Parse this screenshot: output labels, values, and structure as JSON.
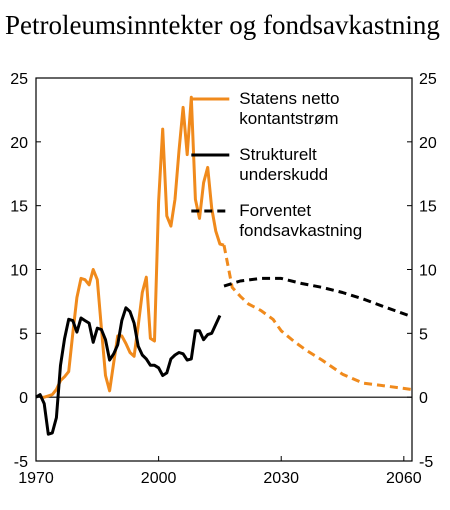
{
  "chart_data": {
    "type": "line",
    "title": "Petroleumsinntekter og fondsavkastning",
    "xlim": [
      1970,
      2062
    ],
    "ylim": [
      -5,
      25
    ],
    "x_ticks": [
      1970,
      2000,
      2030,
      2060
    ],
    "y_ticks": [
      -5,
      0,
      5,
      10,
      15,
      20,
      25
    ],
    "grid": false,
    "legend_position": "top-right",
    "series": [
      {
        "name": "Statens netto kontantstrøm",
        "legend_lines": [
          "Statens netto",
          "kontantstrøm"
        ],
        "color": "#f08a1c",
        "style": "solid",
        "points": [
          [
            1971,
            0
          ],
          [
            1972,
            0
          ],
          [
            1973,
            0.1
          ],
          [
            1974,
            0.2
          ],
          [
            1975,
            0.6
          ],
          [
            1976,
            1.3
          ],
          [
            1977,
            1.6
          ],
          [
            1978,
            2.0
          ],
          [
            1979,
            5.0
          ],
          [
            1980,
            7.8
          ],
          [
            1981,
            9.3
          ],
          [
            1982,
            9.2
          ],
          [
            1983,
            8.8
          ],
          [
            1984,
            10.0
          ],
          [
            1985,
            9.2
          ],
          [
            1986,
            5.4
          ],
          [
            1987,
            1.7
          ],
          [
            1988,
            0.5
          ],
          [
            1989,
            2.7
          ],
          [
            1990,
            4.8
          ],
          [
            1991,
            4.8
          ],
          [
            1992,
            4.2
          ],
          [
            1993,
            3.5
          ],
          [
            1994,
            3.2
          ],
          [
            1995,
            5.6
          ],
          [
            1996,
            8.2
          ],
          [
            1997,
            9.4
          ],
          [
            1998,
            4.6
          ],
          [
            1999,
            4.4
          ],
          [
            2000,
            15.3
          ],
          [
            2001,
            21.0
          ],
          [
            2002,
            14.2
          ],
          [
            2003,
            13.4
          ],
          [
            2004,
            15.5
          ],
          [
            2005,
            19.3
          ],
          [
            2006,
            22.7
          ],
          [
            2007,
            19.0
          ],
          [
            2008,
            23.5
          ],
          [
            2009,
            15.5
          ],
          [
            2010,
            14.0
          ],
          [
            2011,
            16.8
          ],
          [
            2012,
            18.0
          ],
          [
            2013,
            14.8
          ],
          [
            2014,
            13.0
          ],
          [
            2015,
            12.0
          ],
          [
            2016,
            11.9
          ]
        ]
      },
      {
        "name": "Statens netto kontantstrøm (projeksjon)",
        "color": "#f08a1c",
        "style": "dashed",
        "points": [
          [
            2016,
            11.9
          ],
          [
            2018,
            8.6
          ],
          [
            2020,
            7.9
          ],
          [
            2022,
            7.3
          ],
          [
            2025,
            6.8
          ],
          [
            2028,
            6.1
          ],
          [
            2030,
            5.2
          ],
          [
            2033,
            4.4
          ],
          [
            2036,
            3.7
          ],
          [
            2040,
            2.9
          ],
          [
            2045,
            1.8
          ],
          [
            2050,
            1.1
          ],
          [
            2055,
            0.9
          ],
          [
            2062,
            0.6
          ]
        ]
      },
      {
        "name": "Strukturelt underskudd",
        "legend_lines": [
          "Strukturelt",
          "underskudd"
        ],
        "color": "#000000",
        "style": "solid",
        "points": [
          [
            1970,
            0
          ],
          [
            1971,
            0.2
          ],
          [
            1972,
            -0.5
          ],
          [
            1973,
            -2.9
          ],
          [
            1974,
            -2.8
          ],
          [
            1975,
            -1.6
          ],
          [
            1976,
            2.5
          ],
          [
            1977,
            4.6
          ],
          [
            1978,
            6.1
          ],
          [
            1979,
            6.0
          ],
          [
            1980,
            5.1
          ],
          [
            1981,
            6.2
          ],
          [
            1982,
            6.0
          ],
          [
            1983,
            5.8
          ],
          [
            1984,
            4.3
          ],
          [
            1985,
            5.4
          ],
          [
            1986,
            5.3
          ],
          [
            1987,
            4.5
          ],
          [
            1988,
            2.9
          ],
          [
            1989,
            3.4
          ],
          [
            1990,
            4.1
          ],
          [
            1991,
            6.0
          ],
          [
            1992,
            7.0
          ],
          [
            1993,
            6.7
          ],
          [
            1994,
            5.8
          ],
          [
            1995,
            4.0
          ],
          [
            1996,
            3.3
          ],
          [
            1997,
            3.0
          ],
          [
            1998,
            2.5
          ],
          [
            1999,
            2.5
          ],
          [
            2000,
            2.3
          ],
          [
            2001,
            1.7
          ],
          [
            2002,
            1.9
          ],
          [
            2003,
            3.0
          ],
          [
            2004,
            3.3
          ],
          [
            2005,
            3.5
          ],
          [
            2006,
            3.4
          ],
          [
            2007,
            2.9
          ],
          [
            2008,
            3.0
          ],
          [
            2009,
            5.2
          ],
          [
            2010,
            5.2
          ],
          [
            2011,
            4.5
          ],
          [
            2012,
            4.9
          ],
          [
            2013,
            5.0
          ],
          [
            2014,
            5.7
          ],
          [
            2015,
            6.4
          ]
        ]
      },
      {
        "name": "Forventet fondsavkastning",
        "legend_lines": [
          "Forventet",
          "fondsavkastning"
        ],
        "color": "#000000",
        "style": "dashed",
        "points": [
          [
            2016,
            8.7
          ],
          [
            2020,
            9.1
          ],
          [
            2025,
            9.3
          ],
          [
            2030,
            9.3
          ],
          [
            2035,
            8.9
          ],
          [
            2040,
            8.6
          ],
          [
            2045,
            8.2
          ],
          [
            2050,
            7.7
          ],
          [
            2055,
            7.1
          ],
          [
            2062,
            6.3
          ]
        ]
      }
    ]
  }
}
